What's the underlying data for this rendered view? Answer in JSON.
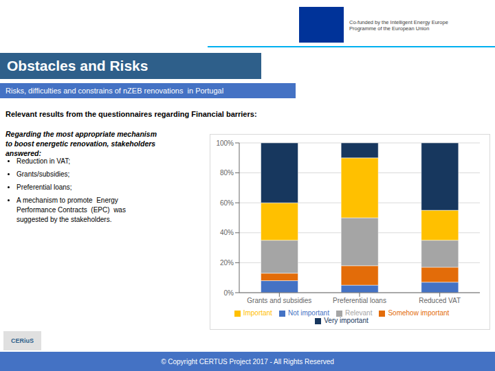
{
  "chart_data": {
    "type": "bar",
    "title": "Obstacles and Risks",
    "subtitle": "Risks, difficulties and constrains of nZEB renovations  in Portugal",
    "annotations": [
      "Relevant results from the questionnaires regarding Financial barriers:",
      "Regarding the most appropriate mechanism\nto boost energetic renovation, stakeholders\nanswered:",
      "Reduction in VAT;",
      "Grants/subsidies;",
      "Preferential loans;",
      "A mechanism to promote  Energy\nPerformance Contracts  (EPC)  was\nsuggested by the stakeholders.",
      "Co-funded by the Intelligent Energy Europe\nProgramme of the European Union",
      "CERiuS",
      "© Copyright CERTUS Project 2017 - All Rights Reserved"
    ],
    "categories": [
      "Grants and subsidies",
      "Preferential loans",
      "Reduced VAT"
    ],
    "series": [
      {
        "name": "Not important",
        "color": "#4472c4",
        "values": [
          8,
          5,
          7
        ]
      },
      {
        "name": "Somehow important",
        "color": "#e36c09",
        "values": [
          5,
          13,
          10
        ]
      },
      {
        "name": "Relevant",
        "color": "#a5a5a5",
        "values": [
          22,
          32,
          18
        ]
      },
      {
        "name": "Important",
        "color": "#ffc000",
        "values": [
          25,
          40,
          20
        ]
      },
      {
        "name": "Very important",
        "color": "#17375e",
        "values": [
          40,
          10,
          45
        ]
      }
    ],
    "ylim": [
      0,
      100
    ],
    "yticks": [
      {
        "value": 0,
        "label": "0%"
      },
      {
        "value": 20,
        "label": "20%"
      },
      {
        "value": 40,
        "label": "40%"
      },
      {
        "value": 60,
        "label": "60%"
      },
      {
        "value": 80,
        "label": "80%"
      },
      {
        "value": 100,
        "label": "100%"
      }
    ],
    "stacked": true,
    "grid": true,
    "legend": "bottom"
  }
}
